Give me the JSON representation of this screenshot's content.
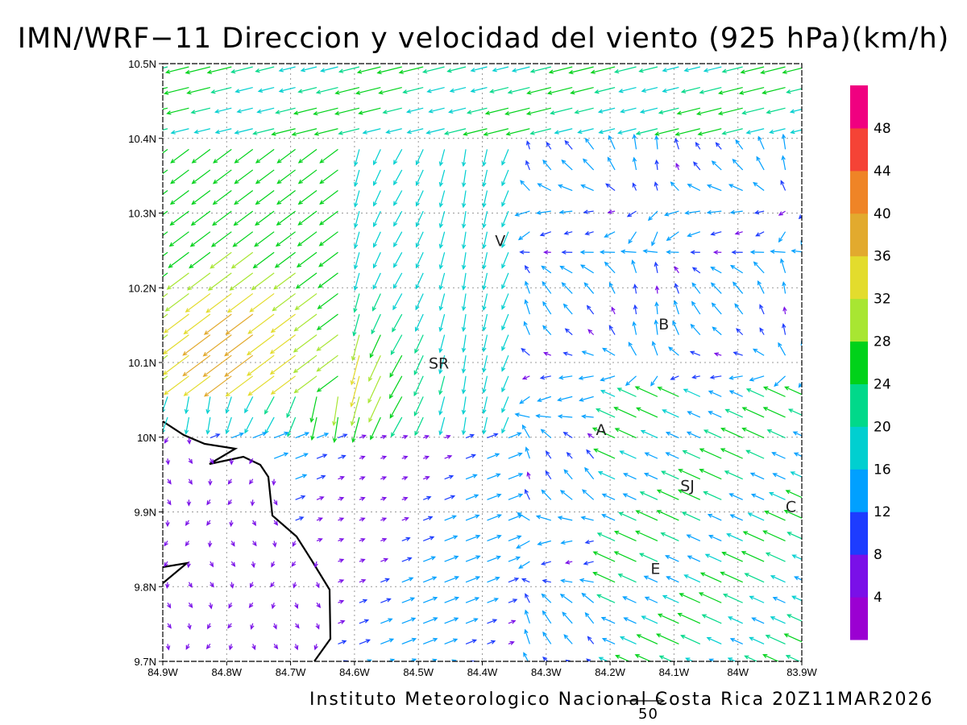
{
  "title": "IMN/WRF−11 Direccion y velocidad del viento (925 hPa)(km/h)",
  "footer": "Instituto Meteorologico Nacional Costa Rica 20Z11MAR2026",
  "reference_vector": {
    "value": "50"
  },
  "map": {
    "lon_range": [
      -84.9,
      -83.9
    ],
    "lat_range": [
      9.7,
      10.5
    ],
    "grid": true,
    "lon_ticks": [
      "84.9W",
      "84.8W",
      "84.7W",
      "84.6W",
      "84.5W",
      "84.4W",
      "84.3W",
      "84.2W",
      "84.1W",
      "84W",
      "83.9W"
    ],
    "lat_ticks": [
      "9.7N",
      "9.8N",
      "9.9N",
      "10N",
      "10.1N",
      "10.2N",
      "10.3N",
      "10.4N",
      "10.5N"
    ],
    "locations": [
      {
        "label": "V",
        "lon": -84.372,
        "lat": 10.256
      },
      {
        "label": "SR",
        "lon": -84.468,
        "lat": 10.092
      },
      {
        "label": "B",
        "lon": -84.116,
        "lat": 10.144
      },
      {
        "label": "A",
        "lon": -84.214,
        "lat": 10.003
      },
      {
        "label": "SJ",
        "lon": -84.079,
        "lat": 9.928
      },
      {
        "label": "C",
        "lon": -83.917,
        "lat": 9.9
      },
      {
        "label": "E",
        "lon": -84.129,
        "lat": 9.817
      }
    ]
  },
  "colorbar": {
    "labels": [
      "4",
      "8",
      "12",
      "16",
      "20",
      "24",
      "28",
      "32",
      "36",
      "40",
      "44",
      "48"
    ],
    "colors": [
      "#9b00d2",
      "#7a10e8",
      "#1d3cff",
      "#00a0ff",
      "#00cfd0",
      "#00d98a",
      "#00d21a",
      "#a8e632",
      "#e3dc2d",
      "#e2aa2e",
      "#ef8426",
      "#f54336",
      "#f00080"
    ]
  }
}
